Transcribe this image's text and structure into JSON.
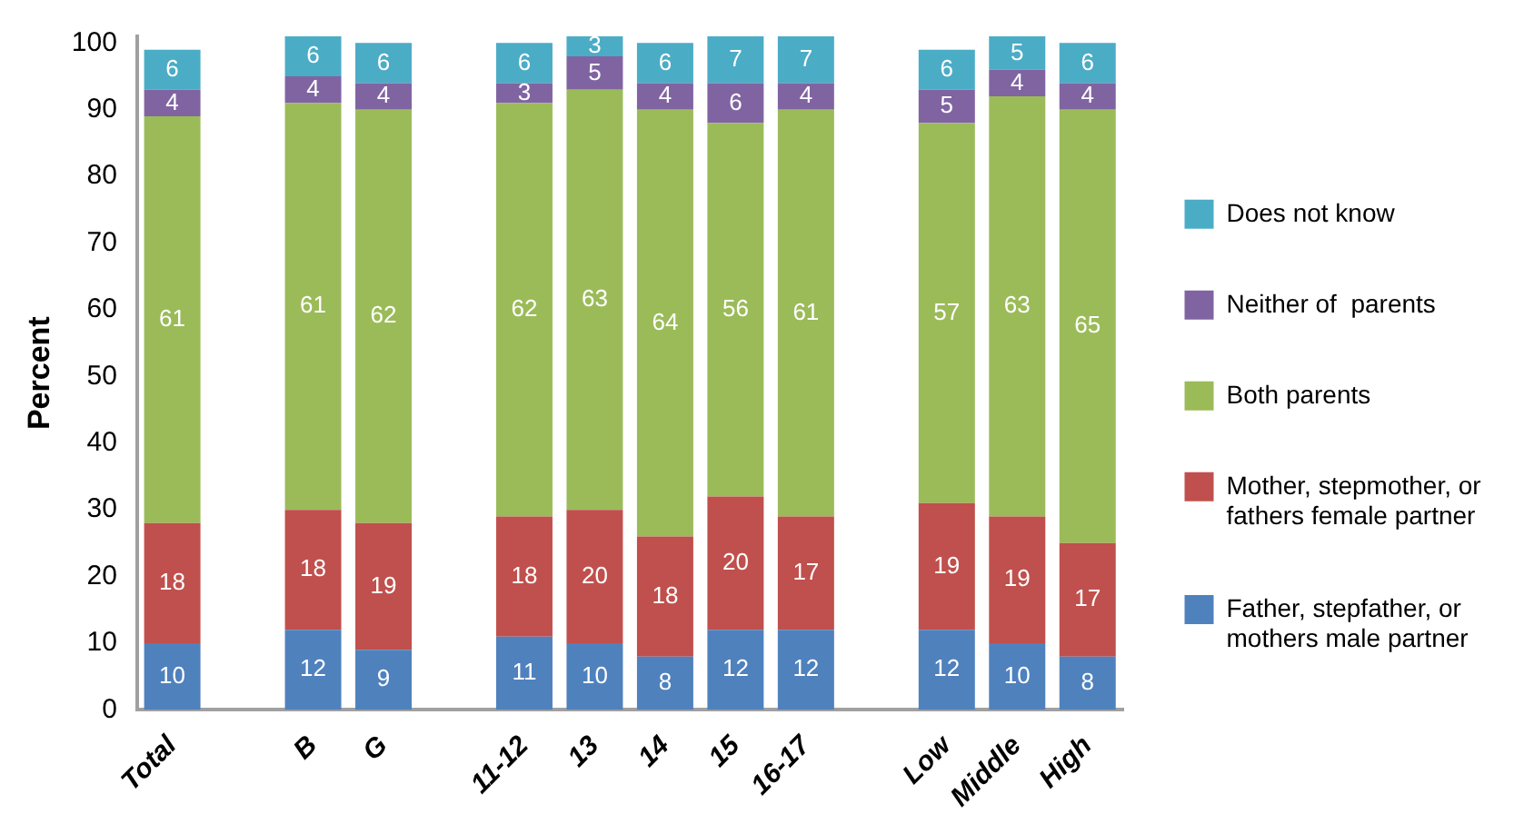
{
  "chart_data": {
    "type": "bar",
    "stacked": true,
    "ylabel": "Percent",
    "categories": [
      "Total",
      null,
      "B",
      "G",
      null,
      "11-12",
      "13",
      "14",
      "15",
      "16-17",
      null,
      "Low",
      "Middle",
      "High"
    ],
    "series": [
      {
        "name": "Father, stepfather, or mothers male partner",
        "color": "#4f81bd",
        "values": [
          10,
          null,
          12,
          9,
          null,
          11,
          10,
          8,
          12,
          12,
          null,
          12,
          10,
          8
        ]
      },
      {
        "name": "Mother, stepmother, or fathers female partner",
        "color": "#c0504d",
        "values": [
          18,
          null,
          18,
          19,
          null,
          18,
          20,
          18,
          20,
          17,
          null,
          19,
          19,
          17
        ]
      },
      {
        "name": "Both parents",
        "color": "#9bbb59",
        "values": [
          61,
          null,
          61,
          62,
          null,
          62,
          63,
          64,
          56,
          61,
          null,
          57,
          63,
          65
        ]
      },
      {
        "name": "Neither of  parents",
        "color": "#8064a2",
        "values": [
          4,
          null,
          4,
          4,
          null,
          3,
          5,
          4,
          6,
          4,
          null,
          5,
          4,
          4
        ]
      },
      {
        "name": "Does not know",
        "color": "#4bacc6",
        "values": [
          6,
          null,
          6,
          6,
          null,
          6,
          3,
          6,
          7,
          7,
          null,
          6,
          5,
          6
        ]
      }
    ],
    "ylim": [
      0,
      101
    ],
    "yticks": [
      0,
      10,
      20,
      30,
      40,
      50,
      60,
      70,
      80,
      90,
      100
    ],
    "data_labels": true,
    "legend": "right",
    "grid": false
  }
}
